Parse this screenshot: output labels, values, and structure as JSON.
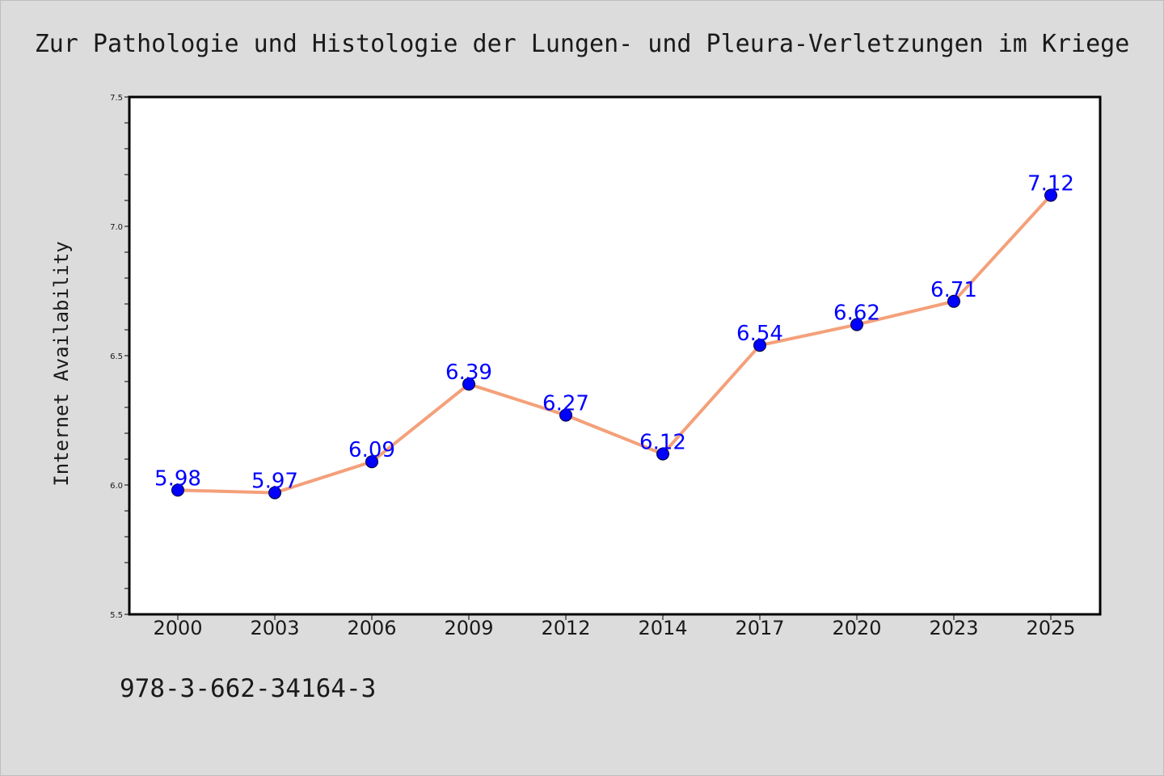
{
  "chart_data": {
    "type": "line",
    "title": "Zur Pathologie und Histologie der Lungen- und Pleura-Verletzungen im Kriege",
    "xlabel": "",
    "ylabel": "Internet Availability",
    "categories": [
      "2000",
      "2003",
      "2006",
      "2009",
      "2012",
      "2014",
      "2017",
      "2020",
      "2023",
      "2025"
    ],
    "values": [
      5.98,
      5.97,
      6.09,
      6.39,
      6.27,
      6.12,
      6.54,
      6.62,
      6.71,
      7.12
    ],
    "value_labels": [
      "5.98",
      "5.97",
      "6.09",
      "6.39",
      "6.27",
      "6.12",
      "6.54",
      "6.62",
      "6.71",
      "7.12"
    ],
    "ylim": [
      5.5,
      7.5
    ],
    "yticks": [
      "5.5",
      "6.0",
      "6.5",
      "7.0",
      "7.5"
    ],
    "grid": false,
    "line_color": "#f4a07a",
    "marker_color": "#0000ff",
    "label_color": "#0000ff"
  },
  "footer": {
    "code": "978-3-662-34164-3"
  }
}
